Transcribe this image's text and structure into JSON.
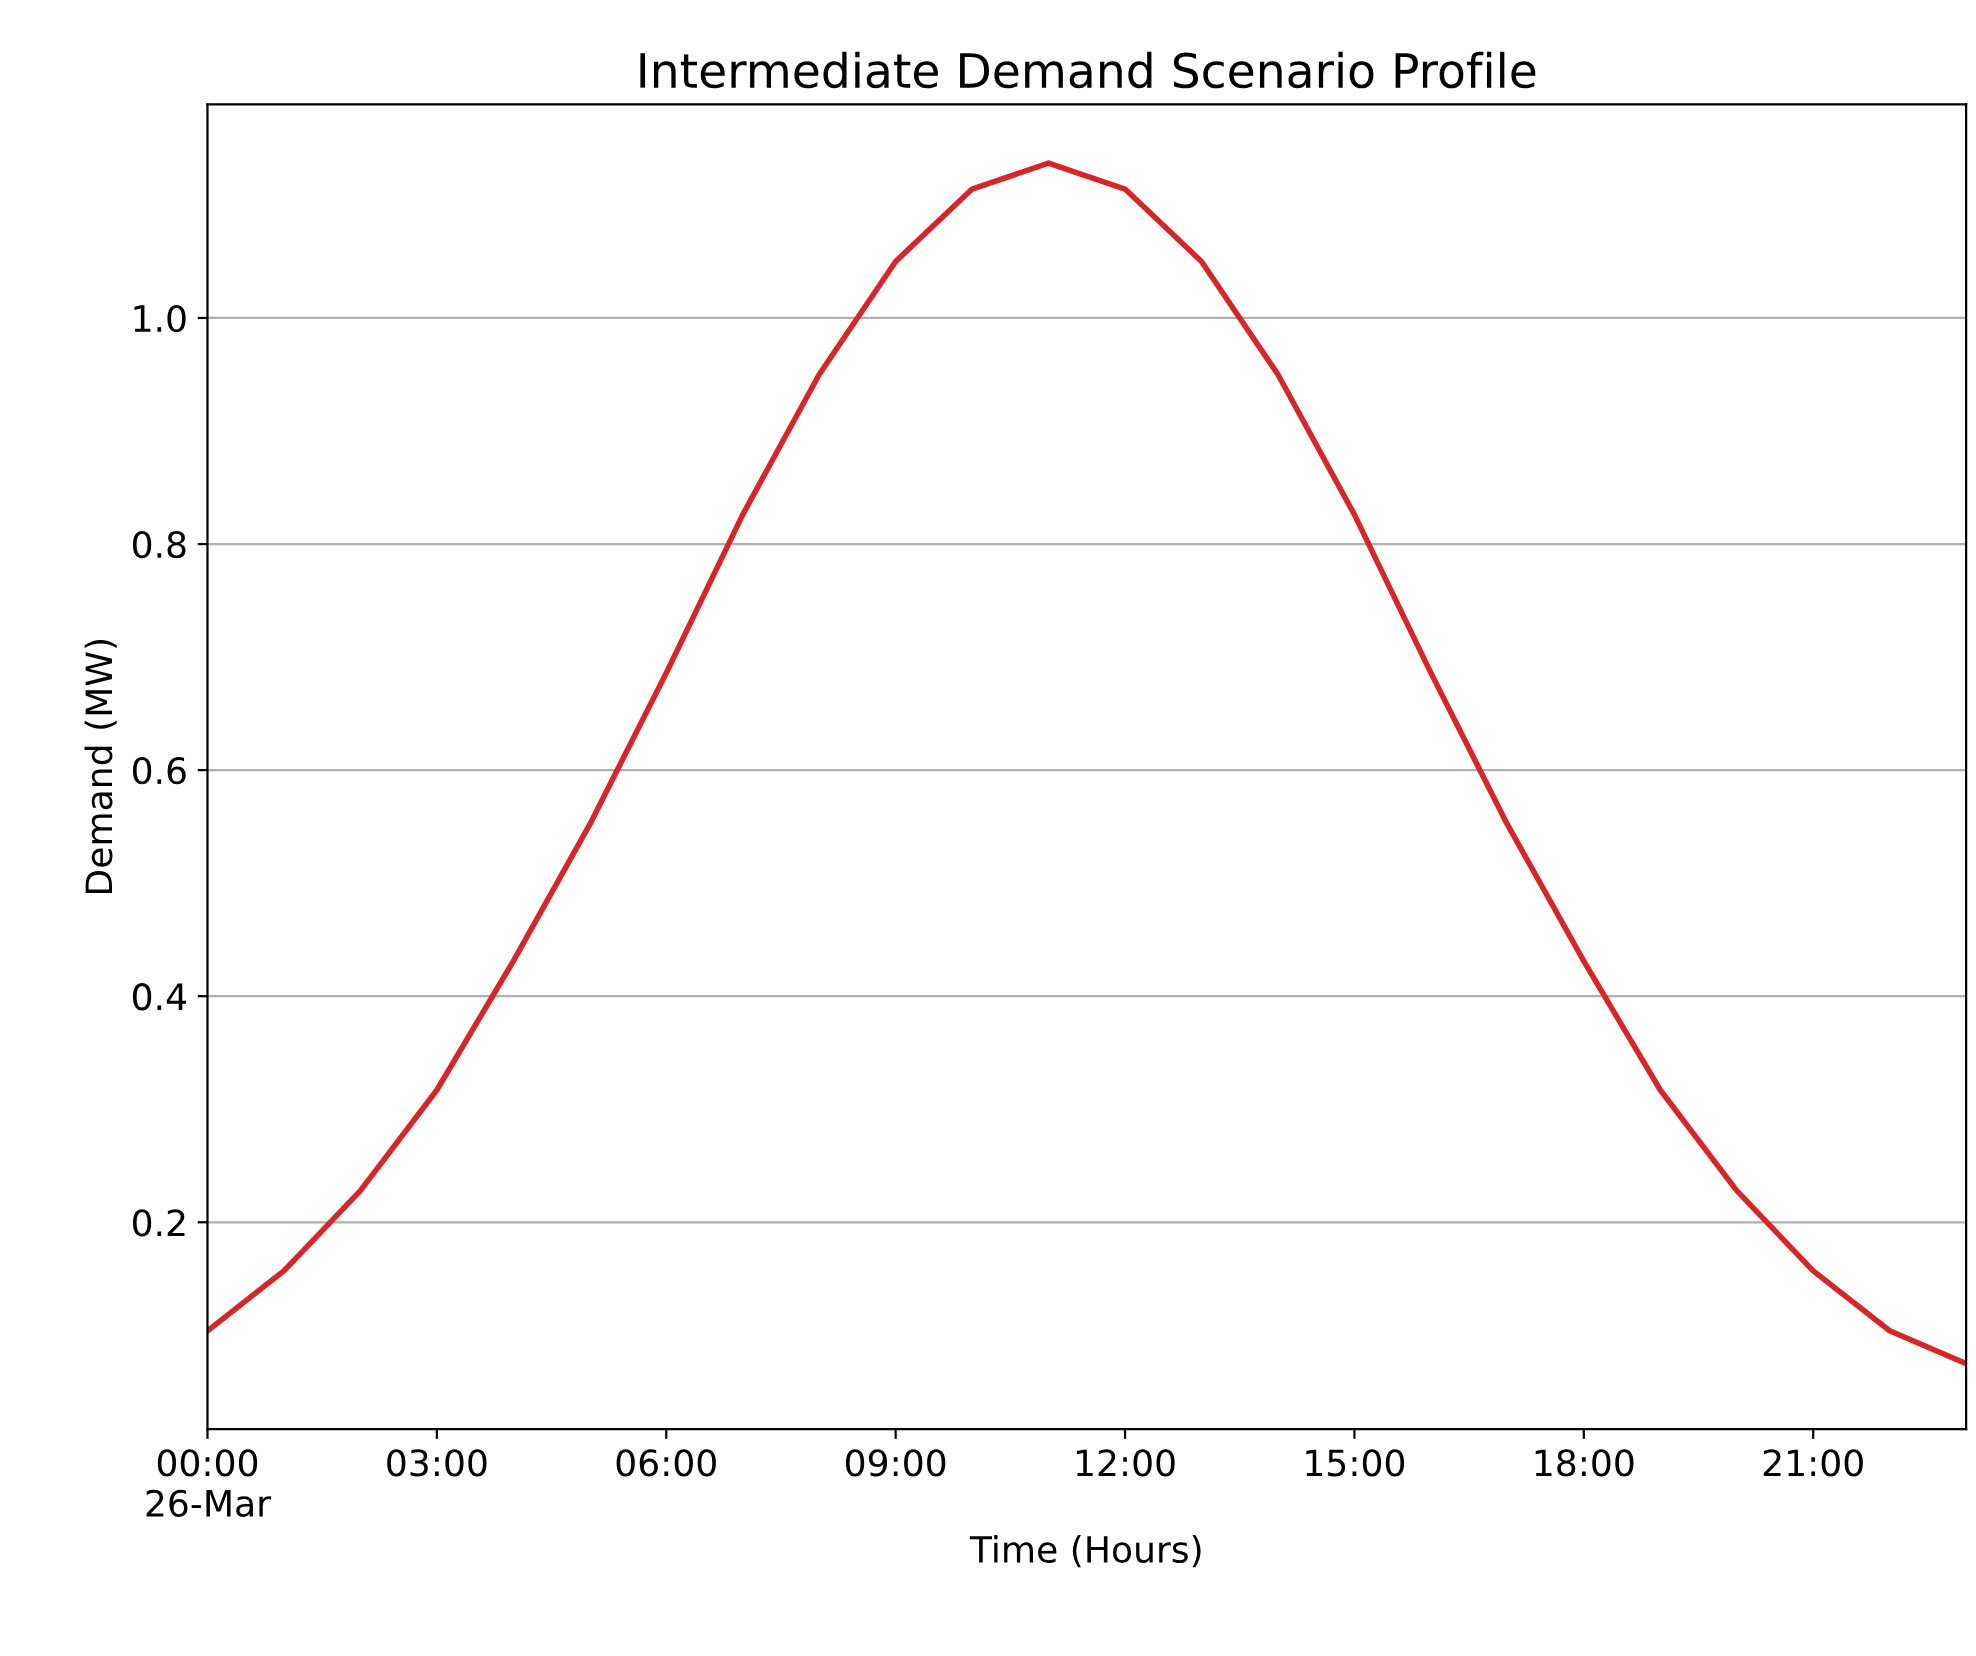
{
  "chart_data": {
    "type": "line",
    "title": "Intermediate Demand Scenario Profile",
    "xlabel": "Time (Hours)",
    "ylabel": "Demand (MW)",
    "x": [
      0,
      1,
      2,
      3,
      4,
      5,
      6,
      7,
      8,
      9,
      10,
      11,
      12,
      13,
      14,
      15,
      16,
      17,
      18,
      19,
      20,
      21,
      22,
      23
    ],
    "series": [
      {
        "color": "#d62728",
        "values": [
          0.104,
          0.157,
          0.228,
          0.317,
          0.431,
          0.552,
          0.686,
          0.826,
          0.95,
          1.05,
          1.114,
          1.137,
          1.114,
          1.05,
          0.95,
          0.826,
          0.686,
          0.552,
          0.431,
          0.317,
          0.228,
          0.157,
          0.104,
          0.075
        ]
      }
    ],
    "xlim": [
      0,
      23
    ],
    "ylim": [
      0.017,
      1.189
    ],
    "xticks": [
      {
        "value": 0,
        "label": "00:00\n26-Mar"
      },
      {
        "value": 3,
        "label": "03:00"
      },
      {
        "value": 6,
        "label": "06:00"
      },
      {
        "value": 9,
        "label": "09:00"
      },
      {
        "value": 12,
        "label": "12:00"
      },
      {
        "value": 15,
        "label": "15:00"
      },
      {
        "value": 18,
        "label": "18:00"
      },
      {
        "value": 21,
        "label": "21:00"
      }
    ],
    "yticks": [
      0.2,
      0.4,
      0.6,
      0.8,
      {
        "value": 1,
        "label": "1.0"
      }
    ],
    "grid": "y",
    "legend": false,
    "marker": "none",
    "line_style": "solid"
  }
}
